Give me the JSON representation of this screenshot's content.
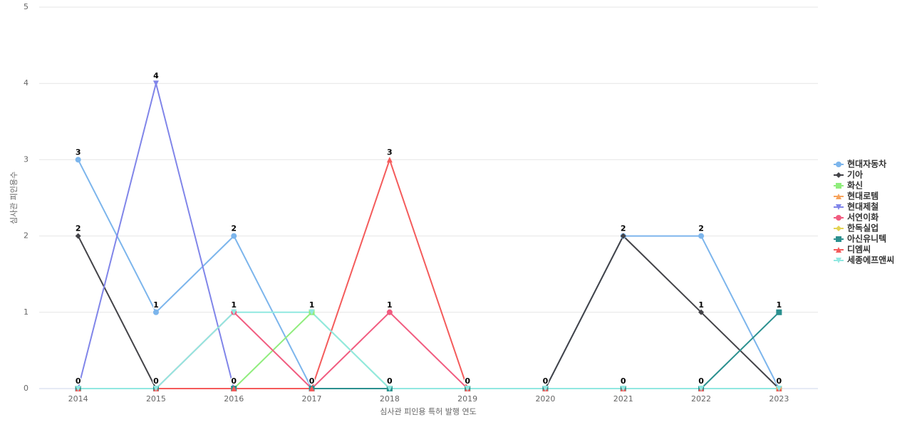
{
  "chart_data": {
    "type": "line",
    "x_label": "심사관 피인용 특허 발행 연도",
    "y_label": "심사관 피인용수",
    "categories": [
      "2014",
      "2015",
      "2016",
      "2017",
      "2018",
      "2019",
      "2020",
      "2021",
      "2022",
      "2023"
    ],
    "ylim": [
      0,
      5
    ],
    "yticks": [
      0,
      1,
      2,
      3,
      4,
      5
    ],
    "grid": true,
    "legend": "right",
    "series": [
      {
        "name": "현대자동차",
        "color": "#7cb5ec",
        "marker": "circle",
        "values": [
          3,
          1,
          2,
          0,
          0,
          0,
          0,
          2,
          2,
          0
        ]
      },
      {
        "name": "기아",
        "color": "#434348",
        "marker": "diamond",
        "values": [
          2,
          0,
          0,
          0,
          0,
          0,
          0,
          2,
          1,
          0
        ]
      },
      {
        "name": "화신",
        "color": "#90ed7d",
        "marker": "square",
        "values": [
          0,
          0,
          0,
          1,
          0,
          0,
          0,
          0,
          0,
          0
        ]
      },
      {
        "name": "현대로템",
        "color": "#f7a35c",
        "marker": "triangle",
        "values": [
          0,
          0,
          0,
          0,
          0,
          0,
          0,
          0,
          0,
          0
        ]
      },
      {
        "name": "현대제철",
        "color": "#8085e9",
        "marker": "triangle-down",
        "values": [
          0,
          4,
          0,
          0,
          0,
          0,
          0,
          0,
          0,
          0
        ]
      },
      {
        "name": "서연이화",
        "color": "#f15c80",
        "marker": "circle",
        "values": [
          0,
          0,
          1,
          0,
          1,
          0,
          0,
          0,
          0,
          0
        ]
      },
      {
        "name": "한독실업",
        "color": "#e4d354",
        "marker": "diamond",
        "values": [
          0,
          0,
          0,
          0,
          0,
          0,
          0,
          0,
          0,
          0
        ]
      },
      {
        "name": "아신유니텍",
        "color": "#2b908f",
        "marker": "square",
        "values": [
          0,
          0,
          0,
          0,
          0,
          0,
          0,
          0,
          0,
          1
        ]
      },
      {
        "name": "디엠씨",
        "color": "#f45b5b",
        "marker": "triangle",
        "values": [
          0,
          0,
          0,
          0,
          3,
          0,
          0,
          0,
          0,
          0
        ]
      },
      {
        "name": "세종에프앤씨",
        "color": "#91e8e1",
        "marker": "triangle-down",
        "values": [
          0,
          0,
          1,
          1,
          0,
          0,
          0,
          0,
          0,
          0
        ]
      }
    ]
  }
}
